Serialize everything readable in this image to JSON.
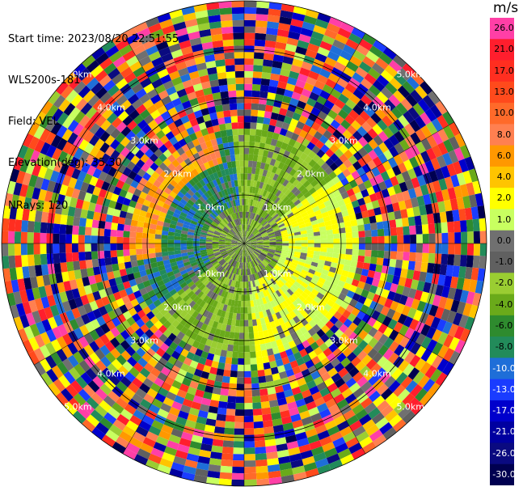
{
  "header": {
    "start_time": "Start time: 2023/08/20 22:51:55",
    "instrument": "WLS200s-181",
    "field": "Field: VEL",
    "elevation": "Elevation(deg): 35.30",
    "nrays": "NRays: 120"
  },
  "colorbar": {
    "title": "m/s",
    "tick_labels": [
      "26.0",
      "21.0",
      "17.0",
      "13.0",
      "10.0",
      "8.0",
      "6.0",
      "4.0",
      "2.0",
      "1.0",
      "0.0",
      "-1.0",
      "-2.0",
      "-4.0",
      "-6.0",
      "-8.0",
      "-10.0",
      "-13.0",
      "-17.0",
      "-21.0",
      "-26.0",
      "-30.0"
    ],
    "band_colors": [
      "#ff3fa6",
      "#ff1e2d",
      "#ff2e20",
      "#ff4a1c",
      "#ff6a2a",
      "#ff8050",
      "#ff9800",
      "#ffc400",
      "#ffff00",
      "#c8ff60",
      "#707070",
      "#606060",
      "#9acd32",
      "#6aaa1a",
      "#2e8b2e",
      "#228b5a",
      "#1e6ed8",
      "#1a3cff",
      "#0000cc",
      "#0000a0",
      "#0a0a80",
      "#000050"
    ]
  },
  "chart_data": {
    "type": "ppi",
    "field": "VEL",
    "unit": "m/s",
    "nrays": 120,
    "elevation_deg": 35.3,
    "range_rings_km": [
      1.0,
      2.0,
      3.0,
      4.0,
      5.0
    ],
    "ring_labels": [
      "1.0km",
      "2.0km",
      "3.0km",
      "4.0km",
      "5.0km"
    ],
    "vmin": -30.0,
    "vmax": 30.0,
    "grid": true
  }
}
